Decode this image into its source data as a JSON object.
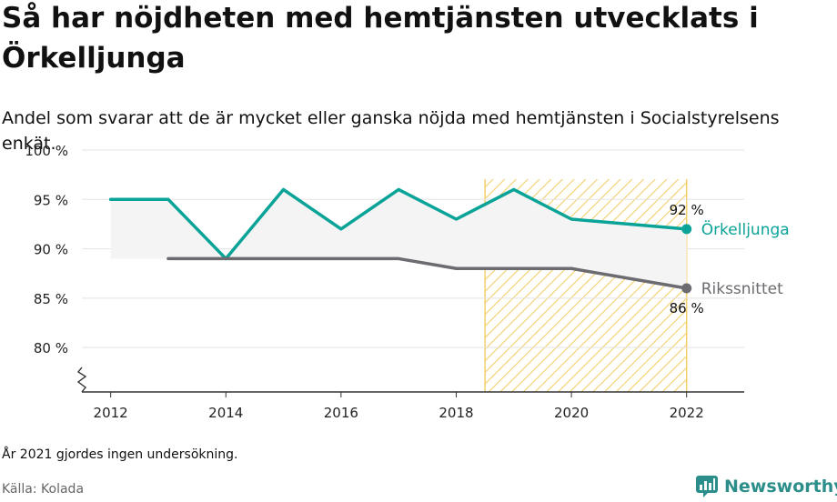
{
  "title": "Så har nöjdheten med hemtjänsten utvecklats i Örkelljunga",
  "subtitle": "Andel som svarar att de är mycket eller ganska nöjda med hemtjänsten i Socialstyrelsens enkät.",
  "note": "År 2021 gjordes ingen undersökning.",
  "source": "Källa: Kolada",
  "brand": "Newsworthy",
  "colors": {
    "primary": "#0aa398",
    "national": "#6b6b70",
    "highlight": "#f2cf6b",
    "fill": "#f4f4f4",
    "brand": "#2b8e8a"
  },
  "chart_data": {
    "type": "line",
    "x": [
      2012,
      2013,
      2014,
      2015,
      2016,
      2017,
      2018,
      2019,
      2020,
      2022
    ],
    "series": [
      {
        "name": "Örkelljunga",
        "x": [
          2012,
          2013,
          2014,
          2015,
          2016,
          2017,
          2018,
          2019,
          2020,
          2022
        ],
        "values": [
          95,
          95,
          89,
          96,
          92,
          96,
          93,
          96,
          93,
          92
        ]
      },
      {
        "name": "Rikssnittet",
        "x": [
          2013,
          2014,
          2015,
          2016,
          2017,
          2018,
          2019,
          2020,
          2022
        ],
        "values": [
          89,
          89,
          89,
          89,
          89,
          88,
          88,
          88,
          86
        ]
      }
    ],
    "end_labels": [
      {
        "series": "Örkelljunga",
        "text": "92 %"
      },
      {
        "series": "Rikssnittet",
        "text": "86 %"
      }
    ],
    "highlight_range": [
      2018.5,
      2022
    ],
    "xlim": [
      2011.5,
      2023
    ],
    "ylim": [
      75.5,
      100
    ],
    "x_ticks": [
      2012,
      2014,
      2016,
      2018,
      2020,
      2022
    ],
    "x_tick_labels": [
      "2012",
      "2014",
      "2016",
      "2018",
      "2020",
      "2022"
    ],
    "y_ticks": [
      80,
      85,
      90,
      95,
      100
    ],
    "y_tick_labels": [
      "80 %",
      "85 %",
      "90 %",
      "95 %",
      "100 %"
    ],
    "grid": "horizontal",
    "axis_break": true,
    "legend": "end-of-line labels"
  }
}
